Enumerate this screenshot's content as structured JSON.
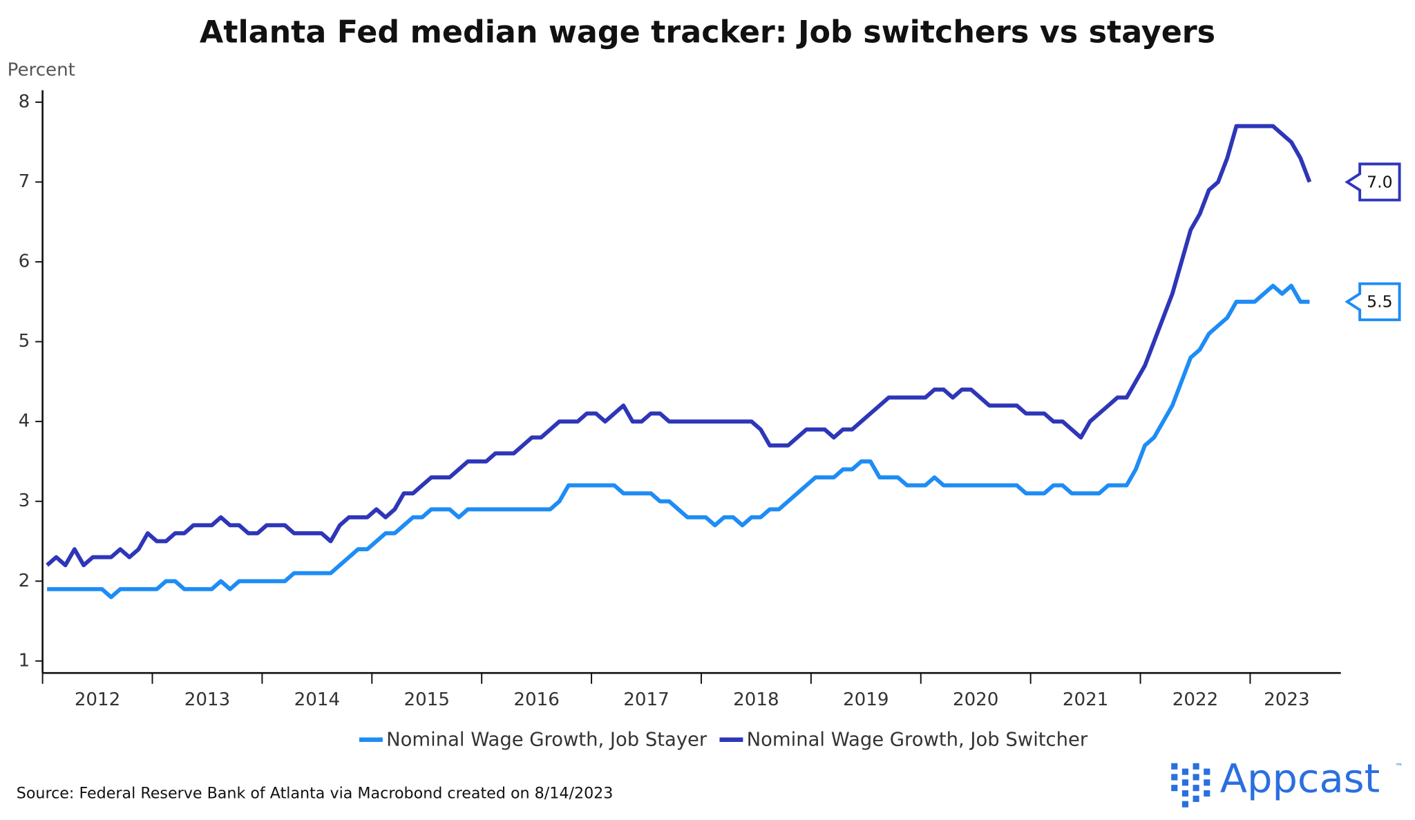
{
  "chart_data": {
    "type": "line",
    "title": "Atlanta Fed median wage tracker: Job switchers vs stayers",
    "y_label": "Percent",
    "source": "Source: Federal Reserve Bank of Atlanta via Macrobond created on 8/14/2023",
    "logo": "Appcast",
    "logo_mark": "™",
    "categories": [
      null,
      null,
      null,
      null,
      null,
      null,
      "2012",
      null,
      null,
      null,
      null,
      null,
      null,
      null,
      null,
      null,
      null,
      null,
      "2013",
      null,
      null,
      null,
      null,
      null,
      null,
      null,
      null,
      null,
      null,
      null,
      "2014",
      null,
      null,
      null,
      null,
      null,
      null,
      null,
      null,
      null,
      null,
      null,
      "2015",
      null,
      null,
      null,
      null,
      null,
      null,
      null,
      null,
      null,
      null,
      null,
      "2016",
      null,
      null,
      null,
      null,
      null,
      null,
      null,
      null,
      null,
      null,
      null,
      "2017",
      null,
      null,
      null,
      null,
      null,
      null,
      null,
      null,
      null,
      null,
      null,
      "2018",
      null,
      null,
      null,
      null,
      null,
      null,
      null,
      null,
      null,
      null,
      null,
      "2019",
      null,
      null,
      null,
      null,
      null,
      null,
      null,
      null,
      null,
      null,
      null,
      "2020",
      null,
      null,
      null,
      null,
      null,
      null,
      null,
      null,
      null,
      null,
      null,
      "2021",
      null,
      null,
      null,
      null,
      null,
      null,
      null,
      null,
      null,
      null,
      null,
      "2022",
      null,
      null,
      null,
      null,
      null,
      null,
      null,
      null,
      null,
      "2023",
      null,
      null
    ],
    "ylim": [
      0.85,
      8.15
    ],
    "yticks": [
      1,
      2,
      3,
      4,
      5,
      6,
      7,
      8
    ],
    "series": [
      {
        "name": "Nominal Wage Growth, Job Stayer",
        "color": "#1e8cf5",
        "values": [
          1.9,
          1.9,
          1.9,
          1.9,
          1.9,
          1.9,
          1.9,
          1.8,
          1.9,
          1.9,
          1.9,
          1.9,
          1.9,
          2.0,
          2.0,
          1.9,
          1.9,
          1.9,
          1.9,
          2.0,
          1.9,
          2.0,
          2.0,
          2.0,
          2.0,
          2.0,
          2.0,
          2.1,
          2.1,
          2.1,
          2.1,
          2.1,
          2.2,
          2.3,
          2.4,
          2.4,
          2.5,
          2.6,
          2.6,
          2.7,
          2.8,
          2.8,
          2.9,
          2.9,
          2.9,
          2.8,
          2.9,
          2.9,
          2.9,
          2.9,
          2.9,
          2.9,
          2.9,
          2.9,
          2.9,
          2.9,
          3.0,
          3.2,
          3.2,
          3.2,
          3.2,
          3.2,
          3.2,
          3.1,
          3.1,
          3.1,
          3.1,
          3.0,
          3.0,
          2.9,
          2.8,
          2.8,
          2.8,
          2.7,
          2.8,
          2.8,
          2.7,
          2.8,
          2.8,
          2.9,
          2.9,
          3.0,
          3.1,
          3.2,
          3.3,
          3.3,
          3.3,
          3.4,
          3.4,
          3.5,
          3.5,
          3.3,
          3.3,
          3.3,
          3.2,
          3.2,
          3.2,
          3.3,
          3.2,
          3.2,
          3.2,
          3.2,
          3.2,
          3.2,
          3.2,
          3.2,
          3.2,
          3.1,
          3.1,
          3.1,
          3.2,
          3.2,
          3.1,
          3.1,
          3.1,
          3.1,
          3.2,
          3.2,
          3.2,
          3.4,
          3.7,
          3.8,
          4.0,
          4.2,
          4.5,
          4.8,
          4.9,
          5.1,
          5.2,
          5.3,
          5.5,
          5.5,
          5.5,
          5.6,
          5.7,
          5.6,
          5.7,
          5.5,
          5.5
        ],
        "value_labels": [
          null,
          null,
          null,
          null,
          null,
          null,
          null,
          null,
          null,
          null,
          null,
          null,
          null,
          null,
          null,
          null,
          null,
          null,
          null,
          null,
          null,
          null,
          null,
          null,
          null,
          null,
          null,
          null,
          null,
          null,
          null,
          null,
          null,
          null,
          null,
          null,
          null,
          null,
          null,
          null,
          null,
          null,
          null,
          null,
          null,
          null,
          null,
          null,
          null,
          null,
          null,
          null,
          null,
          null,
          null,
          null,
          null,
          null,
          null,
          null,
          null,
          null,
          null,
          null,
          null,
          null,
          null,
          null,
          null,
          null,
          null,
          null,
          null,
          null,
          null,
          null,
          null,
          null,
          null,
          null,
          null,
          null,
          null,
          null,
          null,
          null,
          null,
          null,
          null,
          null,
          null,
          null,
          null,
          null,
          null,
          null,
          null,
          null,
          null,
          null,
          null,
          null,
          null,
          null,
          null,
          null,
          null,
          null,
          null,
          null,
          null,
          null,
          null,
          null,
          null,
          null,
          null,
          null,
          null,
          null,
          null,
          null,
          null,
          null,
          null,
          null,
          null,
          null,
          null,
          null,
          null,
          null,
          null,
          null,
          null,
          null,
          null,
          null,
          "5.5"
        ]
      },
      {
        "name": "Nominal Wage Growth, Job Switcher",
        "color": "#2e36b8",
        "values": [
          2.2,
          2.3,
          2.2,
          2.4,
          2.2,
          2.3,
          2.3,
          2.3,
          2.4,
          2.3,
          2.4,
          2.6,
          2.5,
          2.5,
          2.6,
          2.6,
          2.7,
          2.7,
          2.7,
          2.8,
          2.7,
          2.7,
          2.6,
          2.6,
          2.7,
          2.7,
          2.7,
          2.6,
          2.6,
          2.6,
          2.6,
          2.5,
          2.7,
          2.8,
          2.8,
          2.8,
          2.9,
          2.8,
          2.9,
          3.1,
          3.1,
          3.2,
          3.3,
          3.3,
          3.3,
          3.4,
          3.5,
          3.5,
          3.5,
          3.6,
          3.6,
          3.6,
          3.7,
          3.8,
          3.8,
          3.9,
          4.0,
          4.0,
          4.0,
          4.1,
          4.1,
          4.0,
          4.1,
          4.2,
          4.0,
          4.0,
          4.1,
          4.1,
          4.0,
          4.0,
          4.0,
          4.0,
          4.0,
          4.0,
          4.0,
          4.0,
          4.0,
          4.0,
          3.9,
          3.7,
          3.7,
          3.7,
          3.8,
          3.9,
          3.9,
          3.9,
          3.8,
          3.9,
          3.9,
          4.0,
          4.1,
          4.2,
          4.3,
          4.3,
          4.3,
          4.3,
          4.3,
          4.4,
          4.4,
          4.3,
          4.4,
          4.4,
          4.3,
          4.2,
          4.2,
          4.2,
          4.2,
          4.1,
          4.1,
          4.1,
          4.0,
          4.0,
          3.9,
          3.8,
          4.0,
          4.1,
          4.2,
          4.3,
          4.3,
          4.5,
          4.7,
          5.0,
          5.3,
          5.6,
          6.0,
          6.4,
          6.6,
          6.9,
          7.0,
          7.3,
          7.7,
          7.7,
          7.7,
          7.7,
          7.7,
          7.6,
          7.5,
          7.3,
          7.0
        ],
        "value_labels": [
          null,
          null,
          null,
          null,
          null,
          null,
          null,
          null,
          null,
          null,
          null,
          null,
          null,
          null,
          null,
          null,
          null,
          null,
          null,
          null,
          null,
          null,
          null,
          null,
          null,
          null,
          null,
          null,
          null,
          null,
          null,
          null,
          null,
          null,
          null,
          null,
          null,
          null,
          null,
          null,
          null,
          null,
          null,
          null,
          null,
          null,
          null,
          null,
          null,
          null,
          null,
          null,
          null,
          null,
          null,
          null,
          null,
          null,
          null,
          null,
          null,
          null,
          null,
          null,
          null,
          null,
          null,
          null,
          null,
          null,
          null,
          null,
          null,
          null,
          null,
          null,
          null,
          null,
          null,
          null,
          null,
          null,
          null,
          null,
          null,
          null,
          null,
          null,
          null,
          null,
          null,
          null,
          null,
          null,
          null,
          null,
          null,
          null,
          null,
          null,
          null,
          null,
          null,
          null,
          null,
          null,
          null,
          null,
          null,
          null,
          null,
          null,
          null,
          null,
          null,
          null,
          null,
          null,
          null,
          null,
          null,
          null,
          null,
          null,
          null,
          null,
          null,
          null,
          null,
          null,
          null,
          null,
          null,
          null,
          null,
          null,
          null,
          null,
          "7.0"
        ]
      }
    ]
  }
}
